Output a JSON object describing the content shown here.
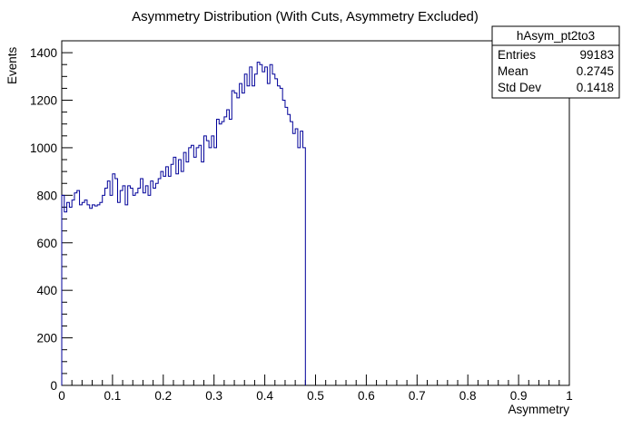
{
  "chart_data": {
    "type": "histogram",
    "title": "Asymmetry Distribution (With Cuts, Asymmetry Excluded)",
    "xlabel": "Asymmetry",
    "ylabel": "Events",
    "xlim": [
      0,
      1
    ],
    "ylim": [
      0,
      1450
    ],
    "x_ticks": [
      0,
      0.1,
      0.2,
      0.3,
      0.4,
      0.5,
      0.6,
      0.7,
      0.8,
      0.9,
      1
    ],
    "x_tick_labels": [
      "0",
      "0.1",
      "0.2",
      "0.3",
      "0.4",
      "0.5",
      "0.6",
      "0.7",
      "0.8",
      "0.9",
      "1"
    ],
    "y_ticks": [
      0,
      200,
      400,
      600,
      800,
      1000,
      1200,
      1400
    ],
    "y_tick_labels": [
      "0",
      "200",
      "400",
      "600",
      "800",
      "1000",
      "1200",
      "1400"
    ],
    "line_color": "#000099",
    "bin_width": 0.005,
    "series": [
      {
        "x_start": 0,
        "values": [
          800,
          730,
          770,
          750,
          780,
          810,
          820,
          760,
          770,
          780,
          760,
          745,
          760,
          755,
          760,
          770,
          800,
          830,
          860,
          800,
          890,
          870,
          770,
          820,
          840,
          760,
          840,
          830,
          800,
          810,
          830,
          870,
          810,
          840,
          800,
          860,
          830,
          850,
          870,
          900,
          880,
          920,
          880,
          930,
          960,
          890,
          950,
          900,
          980,
          940,
          1000,
          1010,
          960,
          1000,
          1010,
          940,
          1050,
          1030,
          1000,
          1050,
          1000,
          1120,
          1100,
          1110,
          1130,
          1160,
          1120,
          1240,
          1230,
          1210,
          1270,
          1230,
          1310,
          1260,
          1340,
          1260,
          1310,
          1360,
          1350,
          1320,
          1340,
          1270,
          1350,
          1310,
          1290,
          1260,
          1250,
          1200,
          1170,
          1140,
          1110,
          1060,
          1080,
          1000,
          1070,
          1000
        ]
      }
    ],
    "stats_box": {
      "name": "hAsym_pt2to3",
      "rows": [
        {
          "label": "Entries",
          "value": "99183"
        },
        {
          "label": "Mean",
          "value": "0.2745"
        },
        {
          "label": "Std Dev",
          "value": "0.1418"
        }
      ]
    },
    "grid": false,
    "legend": "none"
  }
}
